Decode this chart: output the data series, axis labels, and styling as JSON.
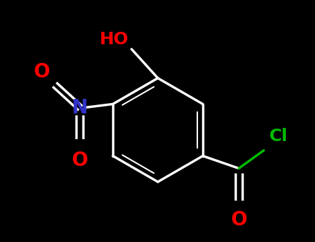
{
  "background_color": "#000000",
  "bond_color": "#ffffff",
  "bond_width": 2.5,
  "ho_text": "HO",
  "ho_color": "#ff0000",
  "ho_fontsize": 18,
  "cl_text": "Cl",
  "cl_color": "#00bb00",
  "cl_fontsize": 18,
  "n_text": "N",
  "n_color": "#3333cc",
  "n_fontsize": 20,
  "o_color": "#ff0000",
  "o_fontsize": 20,
  "o_carb_color": "#ffffff",
  "o_carb_fontsize": 20,
  "figsize": [
    4.55,
    3.5
  ],
  "dpi": 100
}
